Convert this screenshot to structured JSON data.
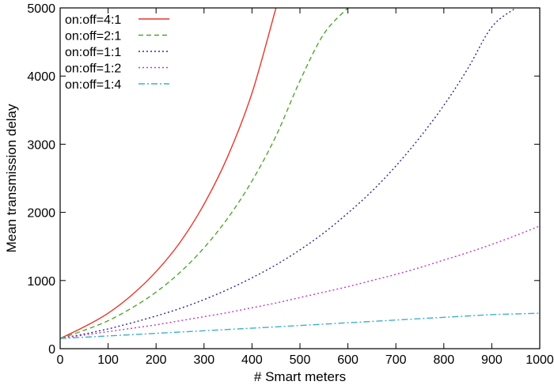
{
  "chart_data": {
    "type": "line",
    "title": "",
    "xlabel": "# Smart meters",
    "ylabel": "Mean transmission delay",
    "xlim": [
      0,
      1000
    ],
    "ylim": [
      0,
      5000
    ],
    "x_ticks": [
      0,
      100,
      200,
      300,
      400,
      500,
      600,
      700,
      800,
      900,
      1000
    ],
    "y_ticks": [
      0,
      1000,
      2000,
      3000,
      4000,
      5000
    ],
    "grid": false,
    "legend_position": "top-left",
    "x": [
      0,
      50,
      100,
      150,
      200,
      250,
      300,
      350,
      400,
      450,
      500,
      550,
      600,
      650,
      700,
      750,
      800,
      850,
      900,
      950,
      1000
    ],
    "series": [
      {
        "name": "on:off=4:1",
        "color": "#e8372a",
        "dash": "solid",
        "values": [
          150,
          320,
          520,
          790,
          1130,
          1560,
          2120,
          2830,
          3750,
          5000,
          null,
          null,
          null,
          null,
          null,
          null,
          null,
          null,
          null,
          null,
          null
        ]
      },
      {
        "name": "on:off=2:1",
        "color": "#52a62e",
        "dash": "dashed",
        "values": [
          150,
          270,
          410,
          600,
          830,
          1120,
          1480,
          1920,
          2460,
          3120,
          3930,
          4620,
          5000,
          null,
          null,
          null,
          null,
          null,
          null,
          null,
          null
        ]
      },
      {
        "name": "on:off=1:1",
        "color": "#2a2a90",
        "dash": "dotted",
        "values": [
          150,
          215,
          290,
          380,
          480,
          590,
          720,
          870,
          1040,
          1230,
          1450,
          1700,
          1990,
          2310,
          2680,
          3100,
          3570,
          4110,
          4720,
          5000,
          null
        ]
      },
      {
        "name": "on:off=1:2",
        "color": "#c03ac0",
        "dash": "dotted",
        "values": [
          150,
          200,
          250,
          300,
          350,
          410,
          470,
          530,
          600,
          670,
          750,
          830,
          910,
          1000,
          1090,
          1190,
          1300,
          1410,
          1530,
          1660,
          1800
        ]
      },
      {
        "name": "on:off=1:4",
        "color": "#3fb0c8",
        "dash": "dashdot",
        "values": [
          150,
          168,
          187,
          206,
          225,
          244,
          263,
          282,
          301,
          320,
          340,
          360,
          380,
          400,
          420,
          440,
          460,
          480,
          500,
          510,
          520
        ]
      }
    ]
  }
}
